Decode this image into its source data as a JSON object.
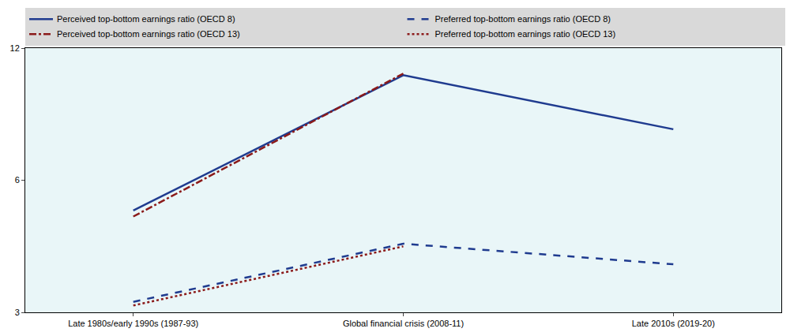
{
  "chart_data": {
    "type": "line",
    "categories": [
      "Late 1980s/early 1990s (1987-93)",
      "Global financial crisis (2008-11)",
      "Late 2010s (2019-20)"
    ],
    "series": [
      {
        "name": "Perceived top-bottom earnings ratio (OECD 8)",
        "color": "#1f3b8f",
        "line_style": "solid",
        "values": [
          5.12,
          10.41,
          7.84
        ]
      },
      {
        "name": "Preferred top-bottom earnings ratio (OECD 8)",
        "color": "#1f3b8f",
        "line_style": "dash",
        "values": [
          3.17,
          4.3,
          3.86
        ]
      },
      {
        "name": "Perceived top-bottom earnings ratio (OECD 13)",
        "color": "#8b1a1a",
        "line_style": "dashdot",
        "values": [
          4.96,
          10.5,
          null
        ]
      },
      {
        "name": "Preferred top-bottom earnings ratio (OECD 13)",
        "color": "#8b1a1a",
        "line_style": "dot",
        "values": [
          3.11,
          4.24,
          null
        ]
      }
    ],
    "ylim": [
      3,
      12
    ],
    "yticks": [
      3,
      6,
      12
    ],
    "log": "y",
    "grid": false,
    "legend": "top"
  }
}
